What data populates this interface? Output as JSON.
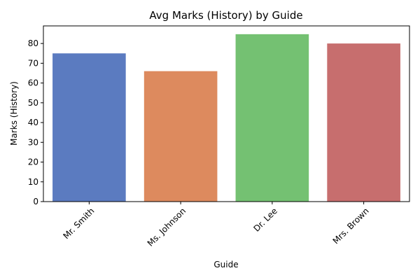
{
  "chart_data": {
    "type": "bar",
    "title": "Avg Marks (History) by Guide",
    "xlabel": "Guide",
    "ylabel": "Marks (History)",
    "categories": [
      "Mr. Smith",
      "Ms. Johnson",
      "Dr. Lee",
      "Mrs. Brown"
    ],
    "values": [
      75,
      66,
      84.7,
      80
    ],
    "colors": [
      "#5b7bc0",
      "#dd8a5e",
      "#74c172",
      "#c76e6e"
    ],
    "ylim": [
      0,
      88.9
    ],
    "yticks": [
      0,
      10,
      20,
      30,
      40,
      50,
      60,
      70,
      80
    ],
    "grid": false,
    "legend": "none"
  }
}
